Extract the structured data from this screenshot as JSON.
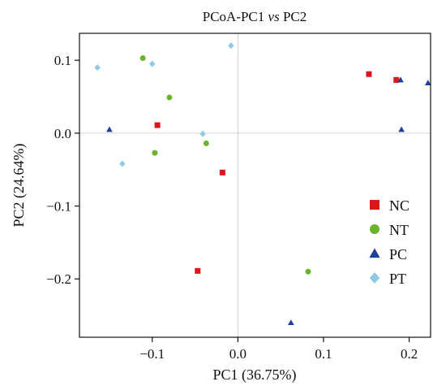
{
  "chart_data": {
    "type": "scatter",
    "title_prefix": "PCoA-PC1 ",
    "title_italic": "vs",
    "title_suffix": " PC2",
    "xlabel": "PC1 (36.75%)",
    "ylabel": "PC2 (24.64%)",
    "xlim": [
      -0.185,
      0.225
    ],
    "ylim": [
      -0.28,
      0.137
    ],
    "xticks": [
      -0.1,
      0.0,
      0.1,
      0.2
    ],
    "xtick_labels": [
      "−0.1",
      "0.0",
      "0.1",
      "0.2"
    ],
    "yticks": [
      0.1,
      0.0,
      -0.1,
      -0.2
    ],
    "ytick_labels": [
      "0.1",
      "0.0",
      "−0.1",
      "−0.2"
    ],
    "grid": false,
    "zero_lines": true,
    "legend_position": "right",
    "series": [
      {
        "name": "NC",
        "marker": "square",
        "color": "#d7191c",
        "points": [
          [
            0.153,
            0.081
          ],
          [
            0.185,
            0.073
          ],
          [
            -0.094,
            0.011
          ],
          [
            -0.018,
            -0.054
          ],
          [
            -0.047,
            -0.189
          ]
        ]
      },
      {
        "name": "NT",
        "marker": "circle",
        "color": "#6ab42d",
        "points": [
          [
            -0.111,
            0.103
          ],
          [
            -0.08,
            0.049
          ],
          [
            -0.037,
            -0.014
          ],
          [
            -0.097,
            -0.027
          ],
          [
            0.082,
            -0.19
          ]
        ]
      },
      {
        "name": "PC",
        "marker": "triangle",
        "color": "#1f3f99",
        "points": [
          [
            0.19,
            0.073
          ],
          [
            0.222,
            0.069
          ],
          [
            -0.15,
            0.005
          ],
          [
            0.191,
            0.005
          ],
          [
            0.062,
            -0.26
          ]
        ]
      },
      {
        "name": "PT",
        "marker": "diamond",
        "color": "#8ecae6",
        "points": [
          [
            -0.164,
            0.09
          ],
          [
            -0.1,
            0.095
          ],
          [
            -0.008,
            0.12
          ],
          [
            -0.041,
            -0.001
          ],
          [
            -0.135,
            -0.042
          ]
        ]
      }
    ]
  }
}
